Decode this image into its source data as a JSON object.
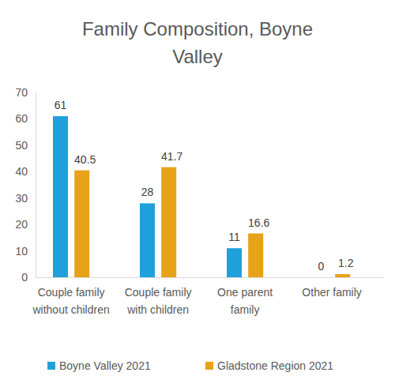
{
  "chart_data": {
    "type": "bar",
    "title": "Family Composition, Boyne Valley",
    "categories": [
      "Couple family without children",
      "Couple family with children",
      "One parent family",
      "Other family"
    ],
    "series": [
      {
        "name": "Boyne Valley 2021",
        "color": "#1fa0db",
        "values": [
          61,
          28,
          11,
          0
        ]
      },
      {
        "name": "Gladstone Region 2021",
        "color": "#e8a21a",
        "values": [
          40.5,
          41.7,
          16.6,
          1.2
        ]
      }
    ],
    "ylim": [
      0,
      70
    ],
    "yticks": [
      0,
      10,
      20,
      30,
      40,
      50,
      60,
      70
    ],
    "grid": false,
    "legend": "bottom",
    "data_labels": true
  }
}
